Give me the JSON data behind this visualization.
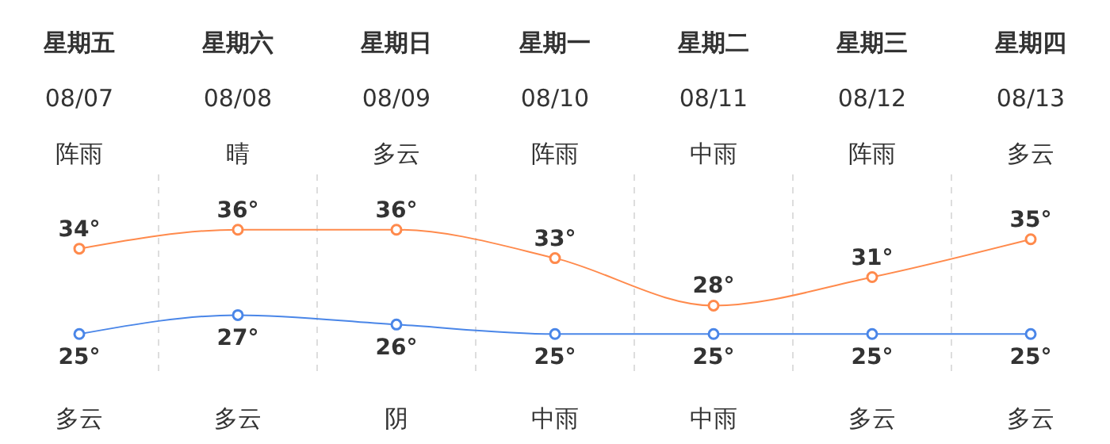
{
  "chart_data": {
    "type": "line",
    "categories": [
      "星期五\n08/07\n阵雨",
      "星期六\n08/08\n晴",
      "星期日\n08/09\n多云",
      "星期一\n08/10\n阵雨",
      "星期二\n08/11\n中雨",
      "星期三\n08/12\n阵雨",
      "星期四\n08/13\n多云"
    ],
    "series": [
      {
        "color": "#ff8a4c",
        "values": [
          34,
          36,
          36,
          33,
          28,
          31,
          35
        ],
        "value_labels": [
          "34°",
          "36°",
          "36°",
          "33°",
          "28°",
          "31°",
          "35°"
        ]
      },
      {
        "color": "#4a86e8",
        "values": [
          25,
          27,
          26,
          25,
          25,
          25,
          25
        ],
        "value_labels": [
          "25°",
          "27°",
          "26°",
          "25°",
          "25°",
          "25°",
          "25°"
        ]
      }
    ],
    "annotations": [
      "多云",
      "多云",
      "阴",
      "中雨",
      "中雨",
      "多云",
      "多云"
    ],
    "marker": "circle",
    "line_style": "solid",
    "grid": "x"
  }
}
